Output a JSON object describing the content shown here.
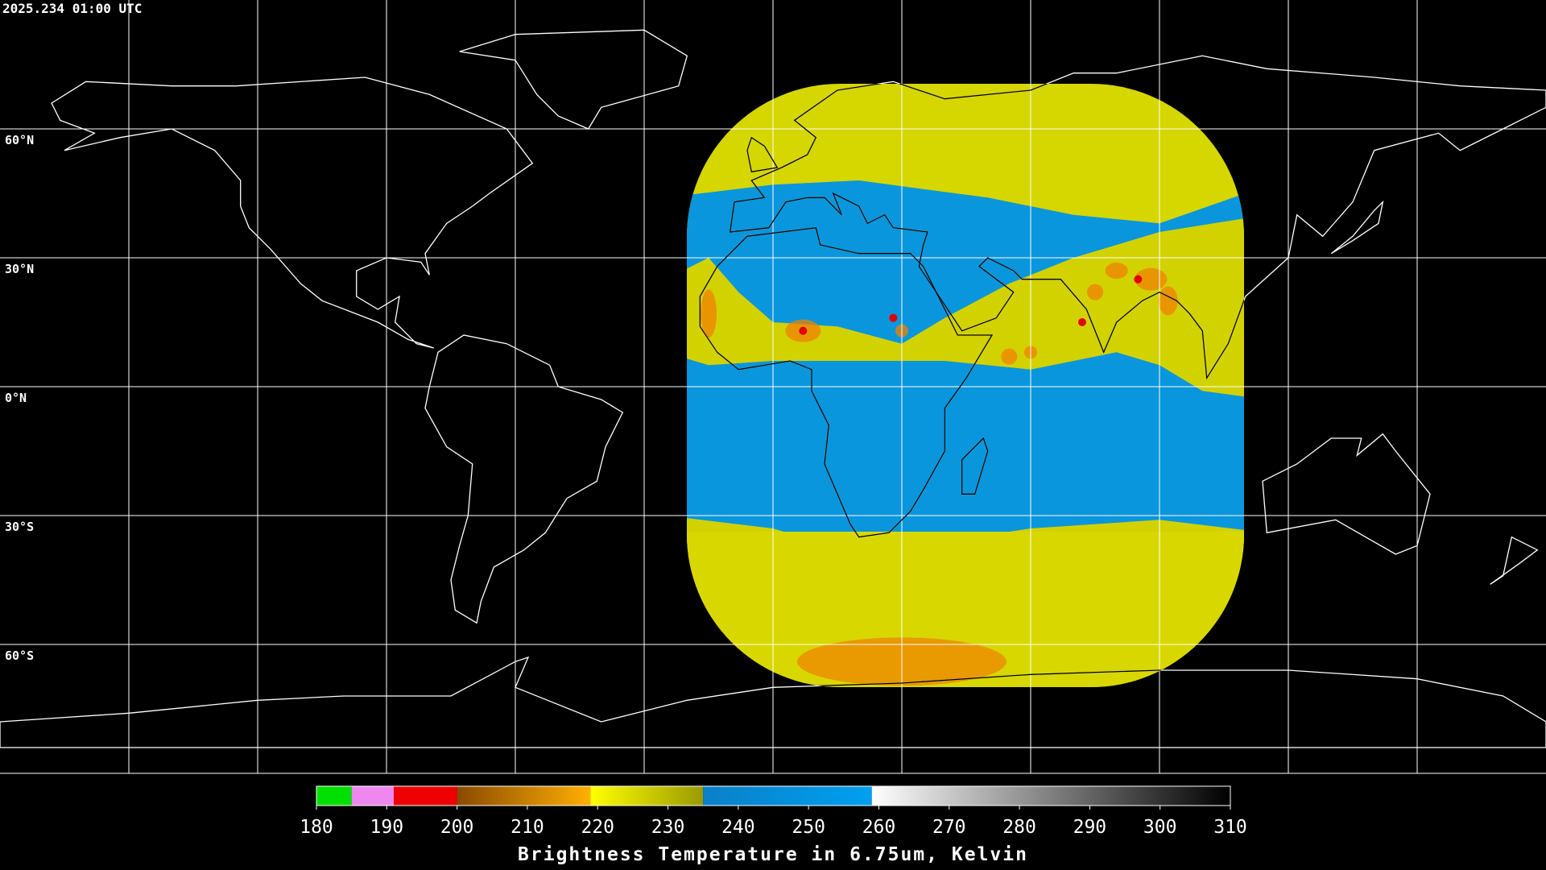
{
  "header": {
    "timestamp": "2025.234 01:00 UTC"
  },
  "map": {
    "lat_lines": [
      {
        "value": 60,
        "label": "60°N"
      },
      {
        "value": 30,
        "label": "30°N"
      },
      {
        "value": 0,
        "label": "0°N"
      },
      {
        "value": -30,
        "label": "30°S"
      },
      {
        "value": -60,
        "label": "60°S"
      }
    ]
  },
  "colorbar": {
    "range": [
      180,
      310
    ],
    "ticks": [
      180,
      190,
      200,
      210,
      220,
      230,
      240,
      250,
      260,
      270,
      280,
      290,
      300,
      310
    ],
    "segments": [
      {
        "from": 180,
        "to": 185,
        "colors": [
          "#00e000",
          "#00e000"
        ]
      },
      {
        "from": 185,
        "to": 191,
        "colors": [
          "#ee88ee",
          "#ee88ee"
        ]
      },
      {
        "from": 191,
        "to": 200,
        "colors": [
          "#ee0000",
          "#ee0000"
        ]
      },
      {
        "from": 200,
        "to": 219,
        "colors": [
          "#8a4a00",
          "#ffb000"
        ]
      },
      {
        "from": 219,
        "to": 235,
        "colors": [
          "#ffff00",
          "#9a9a00"
        ]
      },
      {
        "from": 235,
        "to": 259,
        "colors": [
          "#0a80c8",
          "#00a0f0"
        ]
      },
      {
        "from": 259,
        "to": 310,
        "colors": [
          "#ffffff",
          "#000000"
        ]
      }
    ],
    "title": "Brightness Temperature in 6.75um, Kelvin"
  }
}
